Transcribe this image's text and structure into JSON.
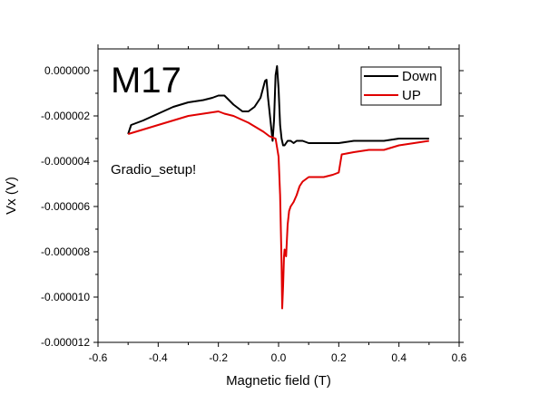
{
  "chart_data": {
    "type": "line",
    "title": "",
    "xlabel": "Magnetic field (T)",
    "ylabel": "Vx (V)",
    "xlim": [
      -0.6,
      0.6
    ],
    "ylim": [
      -1.2e-05,
      1.2e-06
    ],
    "x_ticks": [
      -0.6,
      -0.4,
      -0.2,
      0.0,
      0.2,
      0.4,
      0.6
    ],
    "x_tick_labels": [
      "-0.6",
      "-0.4",
      "-0.2",
      "0.0",
      "0.2",
      "0.4",
      "0.6"
    ],
    "y_ticks": [
      0.0,
      -2e-06,
      -4e-06,
      -6e-06,
      -8e-06,
      -1e-05,
      -1.2e-05
    ],
    "y_tick_labels": [
      "0.000000",
      "-0.000002",
      "-0.000004",
      "-0.000006",
      "-0.000008",
      "-0.000010",
      "-0.000012"
    ],
    "grid": false,
    "legend_position": "top-right",
    "annotations": [
      {
        "text": "M17"
      },
      {
        "text": "Gradio_setup!"
      }
    ],
    "series": [
      {
        "name": "Down",
        "color": "#000000",
        "x": [
          -0.5,
          -0.49,
          -0.45,
          -0.4,
          -0.35,
          -0.3,
          -0.25,
          -0.22,
          -0.2,
          -0.18,
          -0.15,
          -0.12,
          -0.1,
          -0.08,
          -0.06,
          -0.045,
          -0.04,
          -0.035,
          -0.03,
          -0.02,
          -0.015,
          -0.01,
          -0.005,
          0.0,
          0.005,
          0.01,
          0.015,
          0.02,
          0.03,
          0.04,
          0.05,
          0.06,
          0.08,
          0.1,
          0.15,
          0.2,
          0.25,
          0.3,
          0.35,
          0.4,
          0.45,
          0.5
        ],
        "y": [
          -2.8e-06,
          -2.4e-06,
          -2.2e-06,
          -1.9e-06,
          -1.6e-06,
          -1.4e-06,
          -1.3e-06,
          -1.2e-06,
          -1.1e-06,
          -1.1e-06,
          -1.5e-06,
          -1.8e-06,
          -1.8e-06,
          -1.6e-06,
          -1.2e-06,
          -4.5e-07,
          -4e-07,
          -1.2e-06,
          -1.8e-06,
          -3.1e-06,
          -2.2e-06,
          -2e-07,
          2e-07,
          -8e-07,
          -2.4e-06,
          -3e-06,
          -3.3e-06,
          -3.3e-06,
          -3.1e-06,
          -3.1e-06,
          -3.2e-06,
          -3.1e-06,
          -3.1e-06,
          -3.2e-06,
          -3.2e-06,
          -3.2e-06,
          -3.1e-06,
          -3.1e-06,
          -3.1e-06,
          -3e-06,
          -3e-06,
          -3e-06
        ]
      },
      {
        "name": "UP",
        "color": "#e00000",
        "x": [
          -0.5,
          -0.45,
          -0.4,
          -0.35,
          -0.3,
          -0.25,
          -0.2,
          -0.18,
          -0.15,
          -0.1,
          -0.05,
          -0.03,
          -0.01,
          0.0,
          0.005,
          0.01,
          0.012,
          0.015,
          0.018,
          0.02,
          0.025,
          0.03,
          0.035,
          0.04,
          0.05,
          0.06,
          0.07,
          0.08,
          0.1,
          0.12,
          0.15,
          0.18,
          0.2,
          0.21,
          0.25,
          0.3,
          0.35,
          0.4,
          0.45,
          0.5
        ],
        "y": [
          -2.8e-06,
          -2.6e-06,
          -2.4e-06,
          -2.2e-06,
          -2e-06,
          -1.9e-06,
          -1.8e-06,
          -1.9e-06,
          -2e-06,
          -2.3e-06,
          -2.7e-06,
          -2.9e-06,
          -3e-06,
          -3.8e-06,
          -5.5e-06,
          -8.5e-06,
          -1.05e-05,
          -9.5e-06,
          -8.2e-06,
          -7.9e-06,
          -8.2e-06,
          -6.8e-06,
          -6.2e-06,
          -6e-06,
          -5.8e-06,
          -5.5e-06,
          -5.1e-06,
          -4.9e-06,
          -4.7e-06,
          -4.7e-06,
          -4.7e-06,
          -4.6e-06,
          -4.5e-06,
          -3.7e-06,
          -3.6e-06,
          -3.5e-06,
          -3.5e-06,
          -3.3e-06,
          -3.2e-06,
          -3.1e-06
        ]
      }
    ]
  }
}
